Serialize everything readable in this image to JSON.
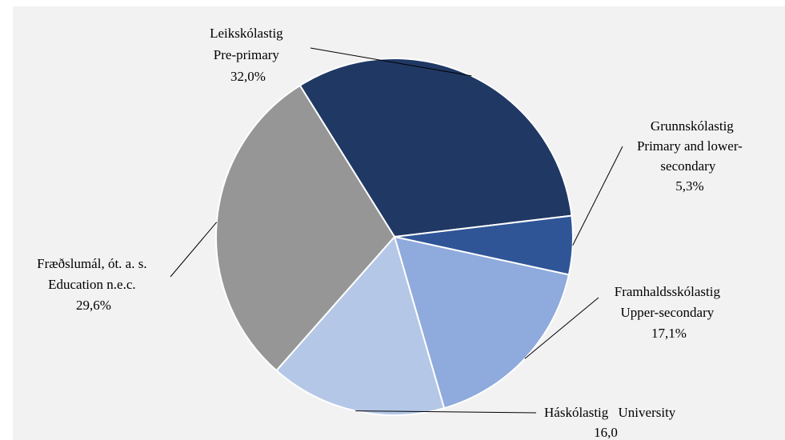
{
  "chart_data": {
    "type": "pie",
    "title": "",
    "slices": [
      {
        "name": "Leikskólastig",
        "name_en": "Pre-primary",
        "value": 32.0,
        "label": "32,0%",
        "color": "#203864"
      },
      {
        "name": "Grunnskólastig",
        "name_en": "Primary and lower-secondary",
        "value": 5.3,
        "label": "5,3%",
        "color": "#2f5597"
      },
      {
        "name": "Framhaldsskólastig",
        "name_en": "Upper-secondary",
        "value": 17.1,
        "label": "17,1%",
        "color": "#8faadc"
      },
      {
        "name": "Háskólastig",
        "name_en": "University",
        "value": 16.0,
        "label": "16,0",
        "color": "#b4c7e7"
      },
      {
        "name": "Fræðslumál, ót. a. s.",
        "name_en": "Education n.e.c.",
        "value": 29.6,
        "label": "29,6%",
        "color": "#969696"
      }
    ],
    "legend": "none",
    "data_labels": "outside with leader lines"
  }
}
